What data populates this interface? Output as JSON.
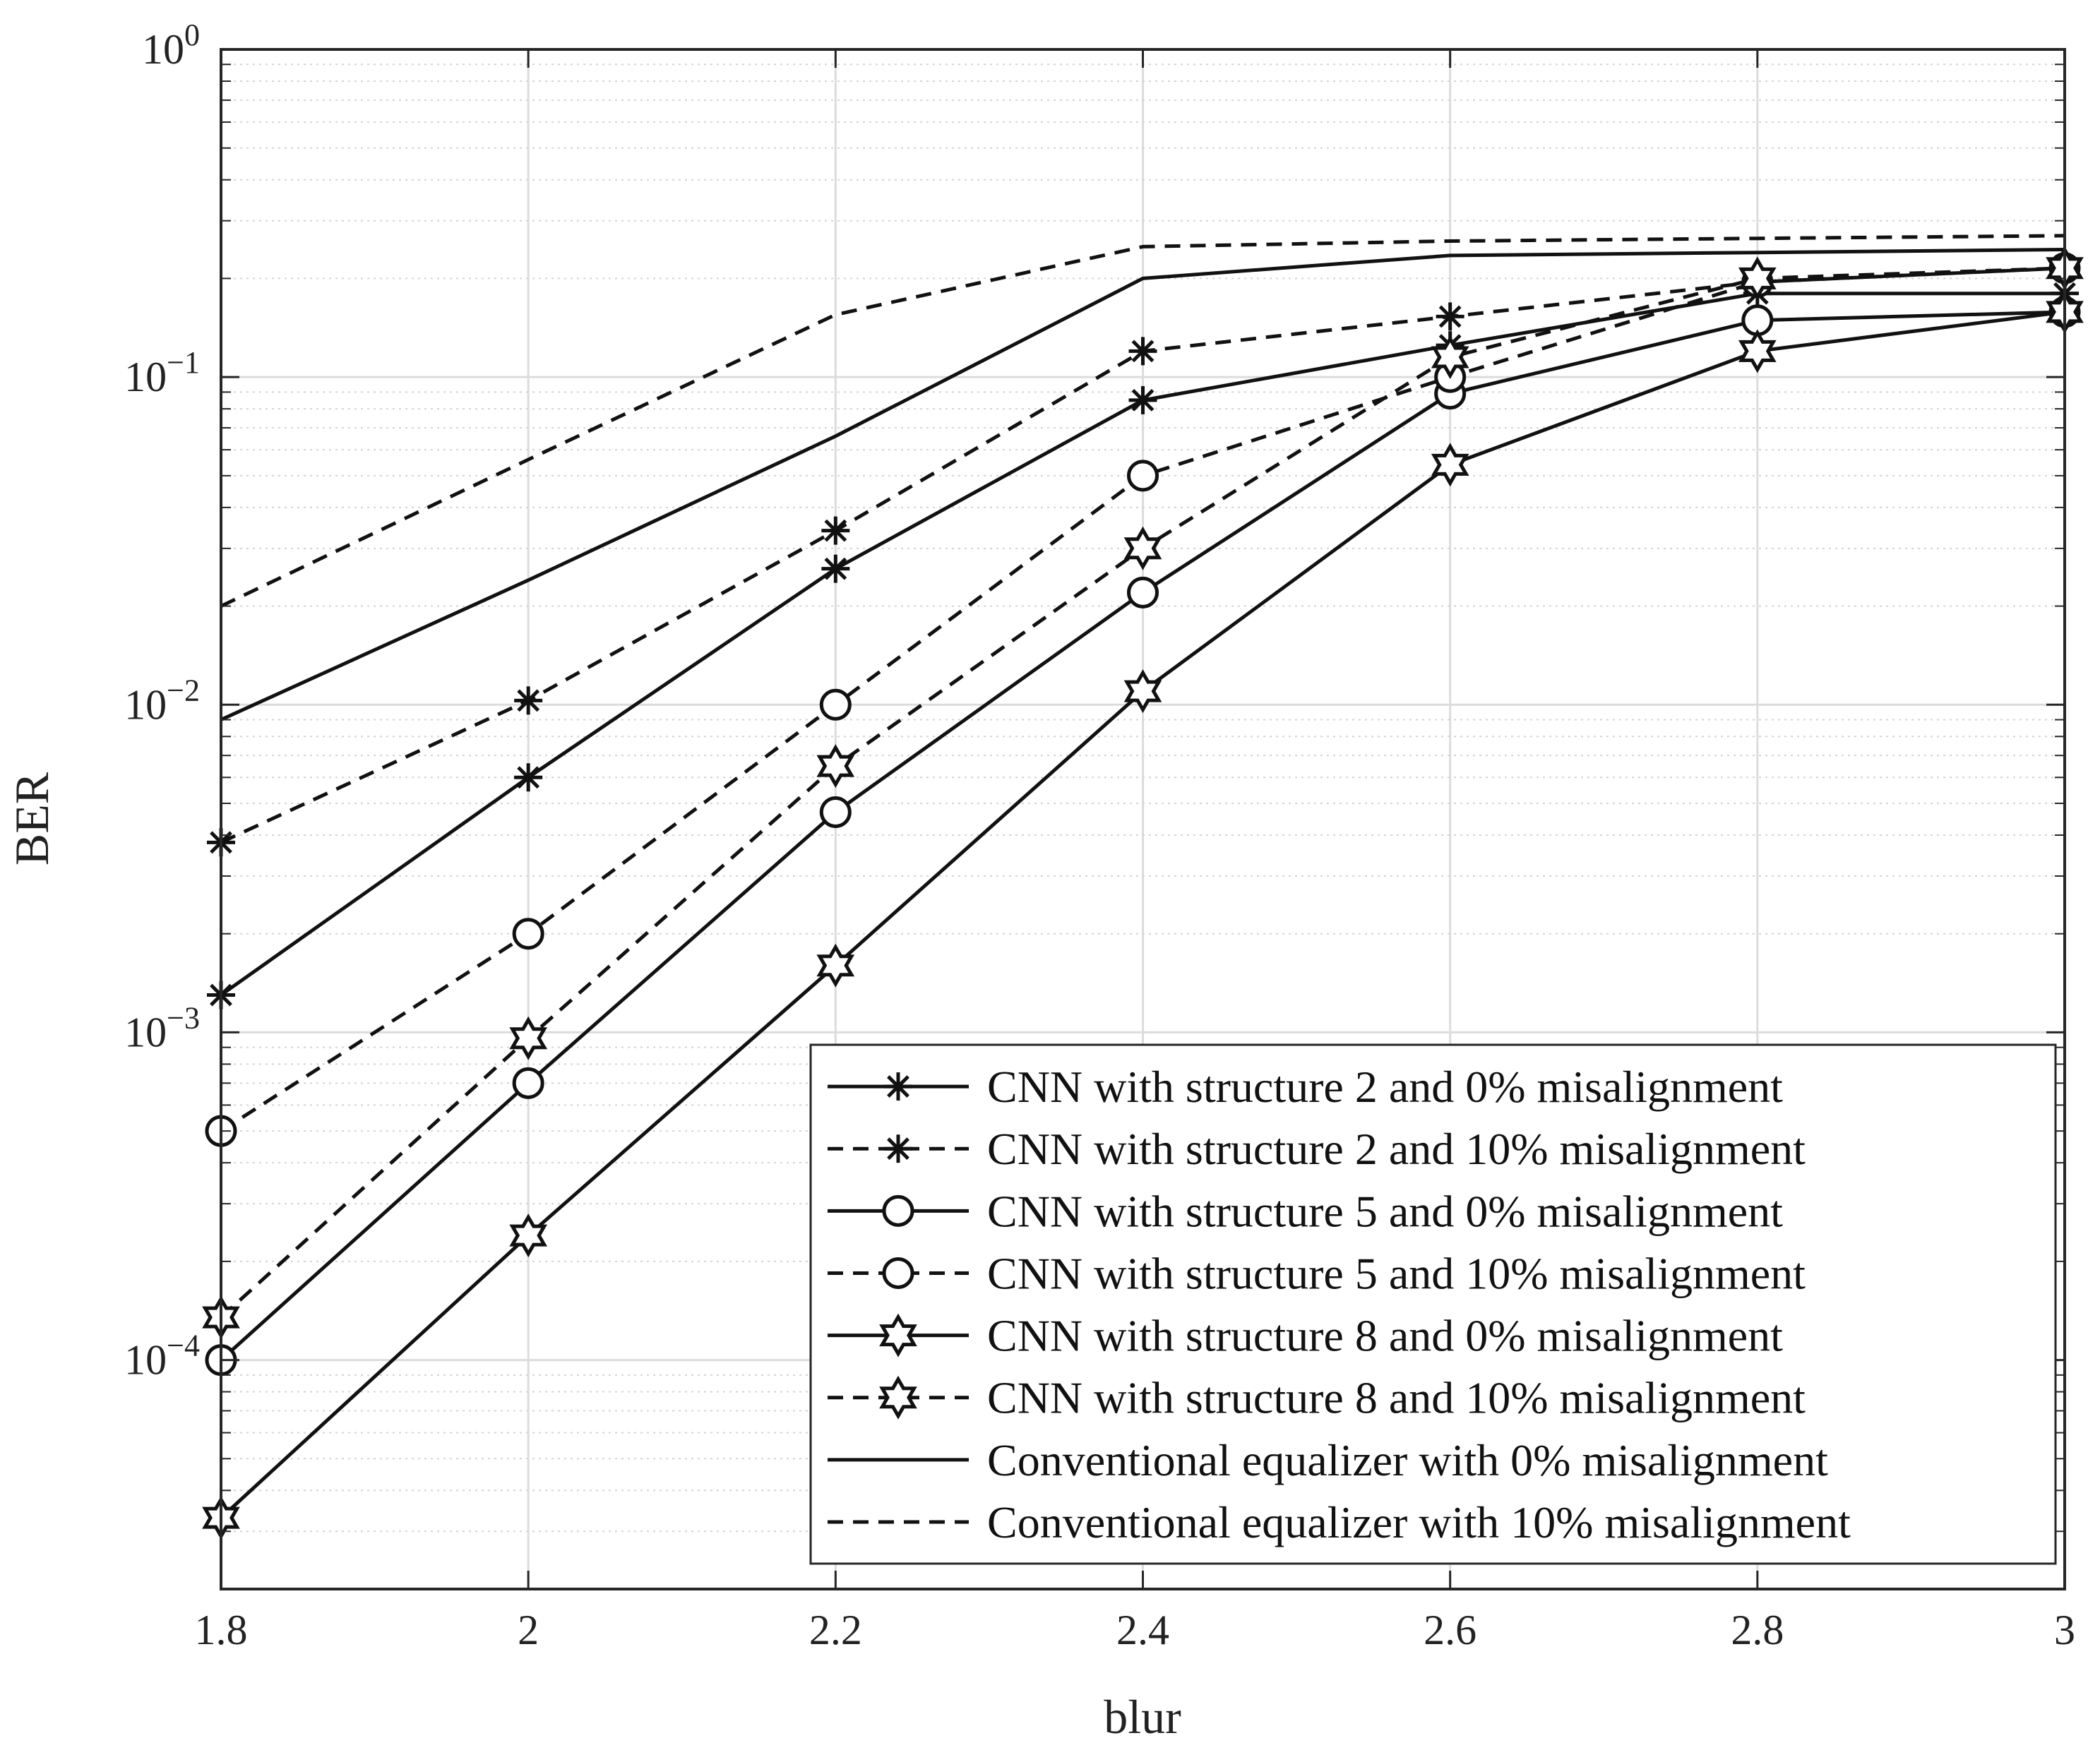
{
  "chart_data": {
    "type": "line",
    "xlabel": "blur",
    "ylabel": "BER",
    "xlim": [
      1.8,
      3
    ],
    "ylim": [
      2e-05,
      1
    ],
    "yscale": "log",
    "grid": "on (major and minor)",
    "legend_position": "bottom-right",
    "x": [
      1.8,
      2.0,
      2.2,
      2.4,
      2.6,
      2.8,
      3.0
    ],
    "x_ticks": [
      "1.8",
      "2",
      "2.2",
      "2.4",
      "2.6",
      "2.8",
      "3"
    ],
    "y_ticks": [
      {
        "base": "10",
        "exp": "0",
        "value": 1
      },
      {
        "base": "10",
        "exp": "−1",
        "value": 0.1
      },
      {
        "base": "10",
        "exp": "−2",
        "value": 0.01
      },
      {
        "base": "10",
        "exp": "−3",
        "value": 0.001
      },
      {
        "base": "10",
        "exp": "−4",
        "value": 0.0001
      }
    ],
    "series": [
      {
        "name": "CNN with structure 2 and 0% misalignment",
        "dash": "solid",
        "marker": "asterisk",
        "values": [
          0.0013,
          0.006,
          0.026,
          0.085,
          0.125,
          0.18,
          0.18
        ]
      },
      {
        "name": "CNN with structure 2 and 10% misalignment",
        "dash": "dashed",
        "marker": "asterisk",
        "values": [
          0.0038,
          0.0103,
          0.034,
          0.12,
          0.153,
          0.195,
          0.215
        ]
      },
      {
        "name": "CNN with structure 5 and 0% misalignment",
        "dash": "solid",
        "marker": "circle",
        "values": [
          0.0001,
          0.0007,
          0.0047,
          0.022,
          0.089,
          0.149,
          0.158
        ]
      },
      {
        "name": "CNN with structure 5 and 10% misalignment",
        "dash": "dashed",
        "marker": "circle",
        "values": [
          0.0005,
          0.002,
          0.01,
          0.05,
          0.1,
          0.195,
          0.215
        ]
      },
      {
        "name": "CNN with structure 8 and 0% misalignment",
        "dash": "solid",
        "marker": "hexagram",
        "values": [
          3.3e-05,
          0.00024,
          0.0016,
          0.011,
          0.054,
          0.12,
          0.158
        ]
      },
      {
        "name": "CNN with structure 8 and 10% misalignment",
        "dash": "dashed",
        "marker": "hexagram",
        "values": [
          0.000135,
          0.00096,
          0.0065,
          0.03,
          0.115,
          0.2,
          0.215
        ]
      },
      {
        "name": "Conventional equalizer with 0% misalignment",
        "dash": "solid",
        "marker": "none",
        "values": [
          0.009,
          0.024,
          0.066,
          0.2,
          0.235,
          0.24,
          0.245
        ]
      },
      {
        "name": "Conventional equalizer with 10% misalignment",
        "dash": "dashed",
        "marker": "none",
        "values": [
          0.02,
          0.056,
          0.155,
          0.25,
          0.26,
          0.265,
          0.27
        ]
      }
    ]
  }
}
